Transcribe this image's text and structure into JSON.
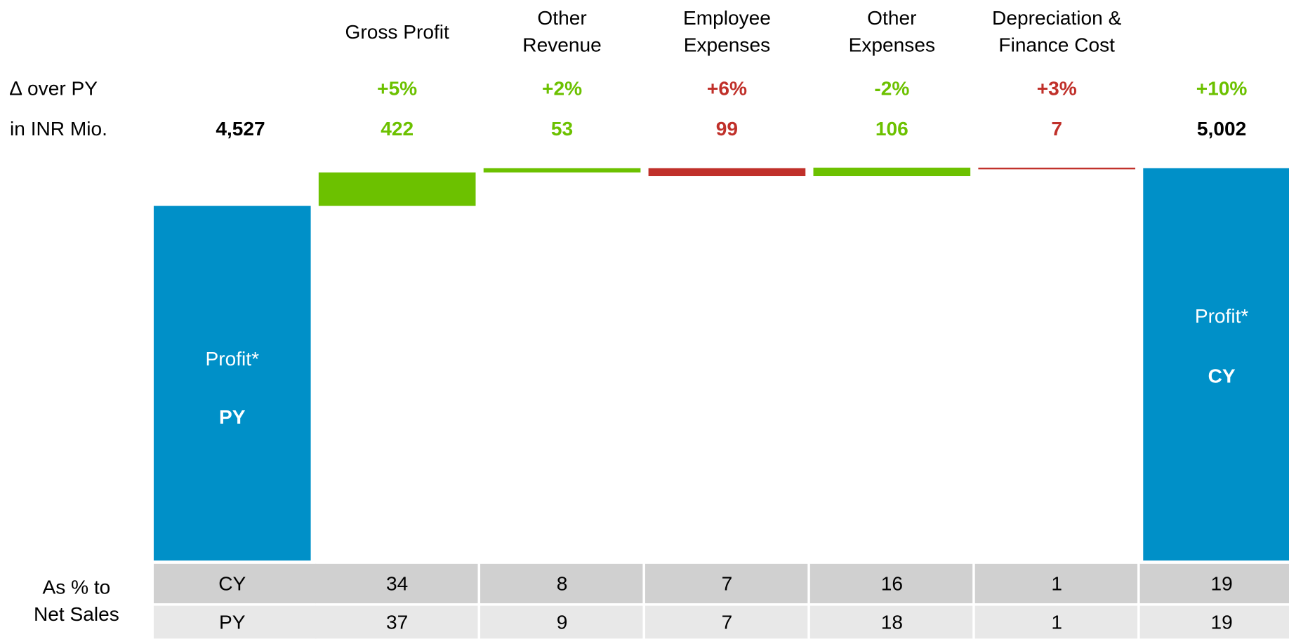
{
  "chart_data": {
    "type": "waterfall",
    "delta_row_label": "∆ over PY",
    "value_row_label": "in INR Mio.",
    "start": {
      "name": "Profit*",
      "label": "PY",
      "value": 4527,
      "value_label": "4,527",
      "color": "#0090c8"
    },
    "end": {
      "name": "Profit*",
      "label": "CY",
      "value": 5002,
      "value_label": "5,002",
      "color": "#0090c8",
      "delta": 10,
      "delta_label": "+10%",
      "delta_color": "#6cc100"
    },
    "categories": [
      [
        "Gross Profit"
      ],
      [
        "Other",
        "Revenue"
      ],
      [
        "Employee",
        "Expenses"
      ],
      [
        "Other",
        "Expenses"
      ],
      [
        "Depreciation &",
        "Finance Cost"
      ]
    ],
    "values": [
      422,
      53,
      -99,
      106,
      -7
    ],
    "value_labels": [
      "422",
      "53",
      "99",
      "106",
      "7"
    ],
    "deltas": [
      5,
      2,
      6,
      -2,
      3
    ],
    "delta_labels": [
      "+5%",
      "+2%",
      "+6%",
      "-2%",
      "+3%"
    ],
    "colors": [
      "#6cc100",
      "#6cc100",
      "#c0302a",
      "#6cc100",
      "#c0302a"
    ],
    "ylim": [
      60,
      5150
    ],
    "table": {
      "label": [
        "As % to",
        "Net Sales"
      ],
      "rows": [
        {
          "name": "CY",
          "values": [
            34,
            8,
            7,
            16,
            1,
            19
          ]
        },
        {
          "name": "PY",
          "values": [
            37,
            9,
            7,
            18,
            1,
            19
          ]
        }
      ]
    }
  }
}
